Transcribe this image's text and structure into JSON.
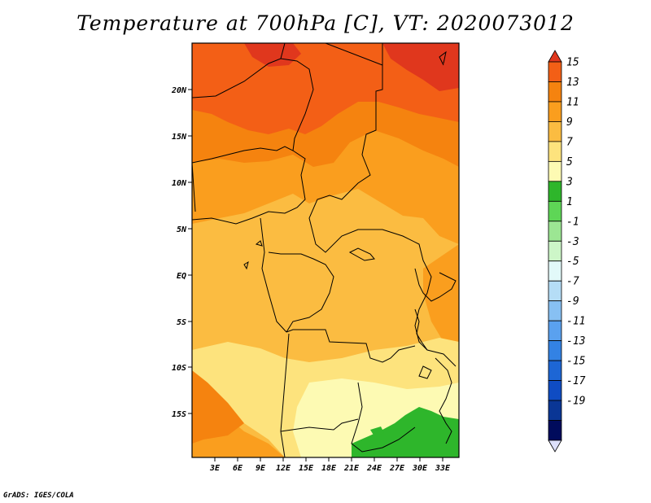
{
  "title": "Temperature at 700hPa [C], VT: 2020073012",
  "credit": "GrADS: IGES/COLA",
  "lat_ticks": [
    "20N",
    "15N",
    "10N",
    "5N",
    "EQ",
    "5S",
    "10S",
    "15S"
  ],
  "lon_ticks": [
    "3E",
    "6E",
    "9E",
    "12E",
    "15E",
    "18E",
    "21E",
    "24E",
    "27E",
    "30E",
    "33E"
  ],
  "colorbar": {
    "labels": [
      "15",
      "13",
      "11",
      "9",
      "7",
      "5",
      "3",
      "1",
      "-1",
      "-3",
      "-5",
      "-7",
      "-9",
      "-11",
      "-13",
      "-15",
      "-17",
      "-19"
    ],
    "colors": [
      "#e0371d",
      "#f35f16",
      "#f5830f",
      "#fa9e1e",
      "#fbbc41",
      "#fde37d",
      "#fdfab3",
      "#2eb62b",
      "#5ed656",
      "#9ce693",
      "#cdf6c8",
      "#e2f9f9",
      "#b5ddf6",
      "#87c0f3",
      "#5aa1ef",
      "#3382e4",
      "#1d66d5",
      "#0f4cc3",
      "#0a3695",
      "#000b5c",
      "#dde0fb"
    ]
  }
}
